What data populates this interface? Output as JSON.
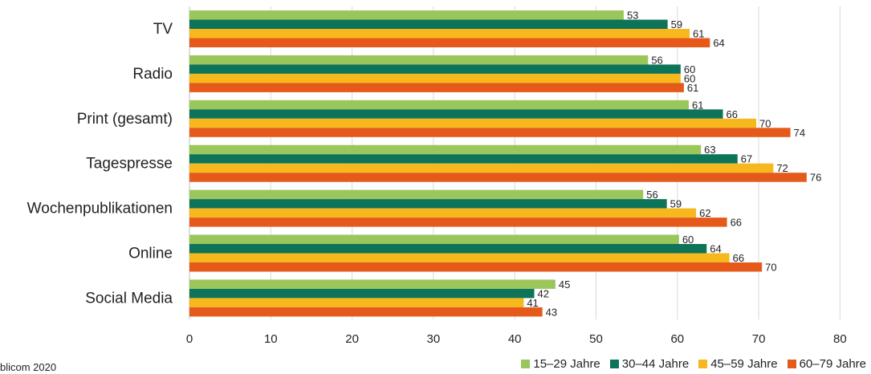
{
  "source": "blicom 2020",
  "chart_data": {
    "type": "bar",
    "orientation": "horizontal",
    "categories": [
      "TV",
      "Radio",
      "Print (gesamt)",
      "Tagespresse",
      "Wochenpublikationen",
      "Online",
      "Social Media"
    ],
    "bar_values": {
      "15–29 Jahre": [
        53.4,
        56.4,
        61.4,
        62.9,
        55.8,
        60.2,
        45.0
      ],
      "30–44 Jahre": [
        58.8,
        60.4,
        65.6,
        67.4,
        58.7,
        63.6,
        42.4
      ],
      "45–59 Jahre": [
        61.5,
        60.4,
        69.7,
        71.8,
        62.3,
        66.4,
        41.1
      ],
      "60–79 Jahre": [
        64.0,
        60.8,
        73.9,
        75.9,
        66.1,
        70.4,
        43.4
      ]
    },
    "series": [
      {
        "name": "15–29 Jahre",
        "color": "#9bc65b",
        "labels": [
          "53",
          "56",
          "61",
          "63",
          "56",
          "60",
          "45"
        ]
      },
      {
        "name": "30–44 Jahre",
        "color": "#0d7359",
        "labels": [
          "59",
          "60",
          "66",
          "67",
          "59",
          "64",
          "42"
        ]
      },
      {
        "name": "45–59 Jahre",
        "color": "#f6b81c",
        "labels": [
          "61",
          "60",
          "70",
          "72",
          "62",
          "66",
          "41"
        ]
      },
      {
        "name": "60–79 Jahre",
        "color": "#e55a1a",
        "labels": [
          "64",
          "61",
          "74",
          "76",
          "66",
          "70",
          "43"
        ]
      }
    ],
    "xlim": [
      0,
      80
    ],
    "xticks": [
      0,
      10,
      20,
      30,
      40,
      50,
      60,
      70,
      80
    ],
    "grid": true,
    "legend": "bottom-right"
  }
}
